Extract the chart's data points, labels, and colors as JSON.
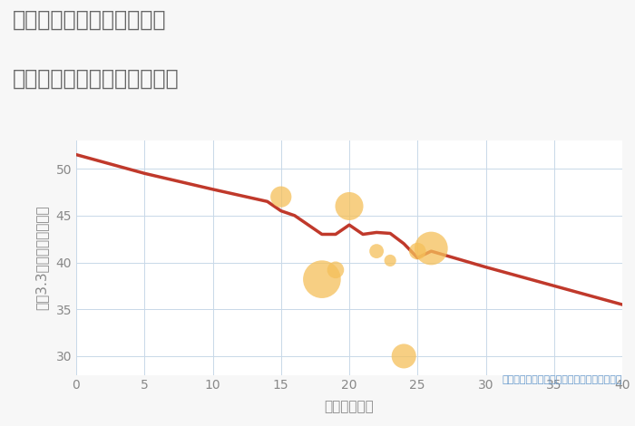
{
  "title_line1": "神奈川県相模原市緑区小渕",
  "title_line2": "築年数別中古マンション価格",
  "xlabel": "築年数（年）",
  "ylabel": "坪（3.3㎡）単価（万円）",
  "annotation": "円の大きさは、取引のあった物件面積を示す",
  "background_color": "#f7f7f7",
  "plot_bg_color": "#ffffff",
  "line_color": "#c0392b",
  "line_x": [
    0,
    5,
    10,
    14,
    15,
    16,
    18,
    19,
    20,
    21,
    22,
    23,
    24,
    25,
    26,
    30,
    35,
    40
  ],
  "line_y": [
    51.5,
    49.5,
    47.8,
    46.5,
    45.5,
    45.0,
    43.0,
    43.0,
    44.0,
    43.0,
    43.2,
    43.1,
    42.0,
    40.5,
    41.2,
    39.5,
    37.5,
    35.5
  ],
  "bubble_x": [
    15,
    18,
    19,
    20,
    22,
    23,
    24,
    25,
    26
  ],
  "bubble_y": [
    47.0,
    38.2,
    39.2,
    46.0,
    41.2,
    40.2,
    30.0,
    41.2,
    41.5
  ],
  "bubble_size": [
    280,
    900,
    180,
    500,
    130,
    90,
    380,
    180,
    700
  ],
  "bubble_color": "#f5c05a",
  "bubble_alpha": 0.75,
  "xlim": [
    0,
    40
  ],
  "ylim": [
    28,
    53
  ],
  "xticks": [
    0,
    5,
    10,
    15,
    20,
    25,
    30,
    35,
    40
  ],
  "yticks": [
    30,
    35,
    40,
    45,
    50
  ],
  "title_fontsize": 17,
  "label_fontsize": 11,
  "tick_fontsize": 10,
  "annotation_fontsize": 8,
  "grid_color": "#c8d8e8",
  "title_color": "#666666",
  "axis_color": "#888888",
  "annotation_color": "#6699cc"
}
